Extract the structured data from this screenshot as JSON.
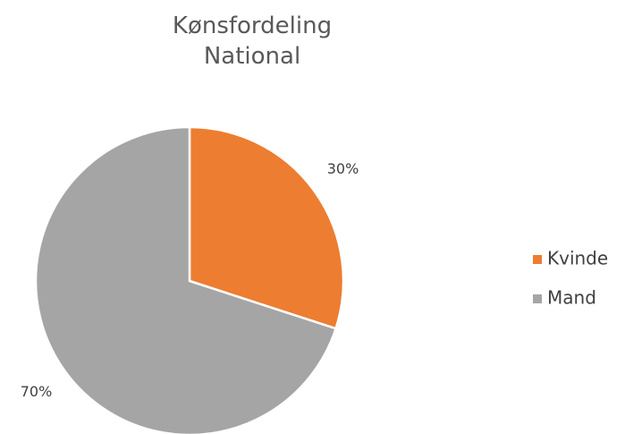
{
  "chart_data": {
    "type": "pie",
    "title": "Kønsfordeling National",
    "categories": [
      "Kvinde",
      "Mand"
    ],
    "values": [
      30,
      70
    ],
    "value_labels": [
      "30%",
      "70%"
    ],
    "colors": [
      "#ed7d31",
      "#a5a5a5"
    ],
    "legend": "right"
  }
}
